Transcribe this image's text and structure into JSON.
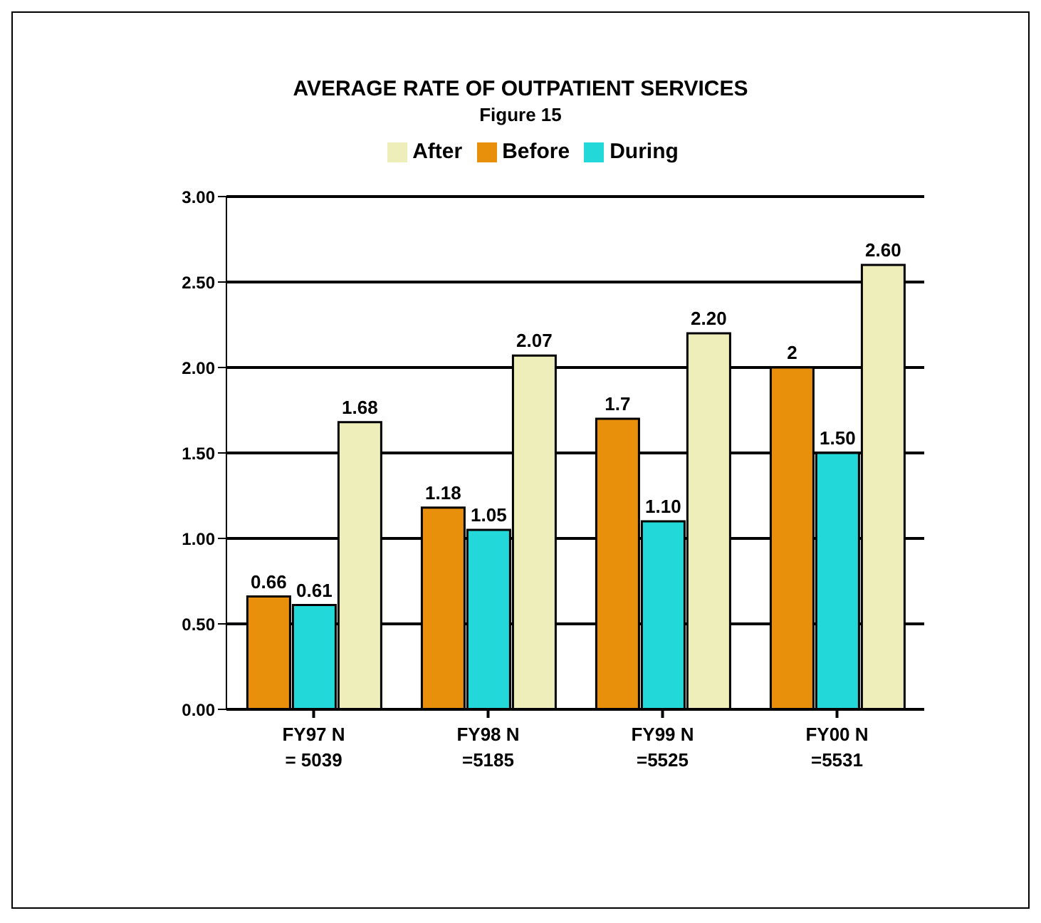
{
  "chart_data": {
    "type": "bar",
    "title": "AVERAGE RATE OF OUTPATIENT SERVICES",
    "subtitle": "Figure 15",
    "categories": [
      "FY97 N\n= 5039",
      "FY98 N\n=5185",
      "FY99 N\n=5525",
      "FY00 N\n=5531"
    ],
    "series": [
      {
        "name": "Before",
        "color": "#e8900c",
        "values": [
          0.66,
          1.18,
          1.7,
          2
        ],
        "value_labels": [
          "0.66",
          "1.18",
          "1.7",
          "2"
        ]
      },
      {
        "name": "During",
        "color": "#22d8d8",
        "values": [
          0.61,
          1.05,
          1.1,
          1.5
        ],
        "value_labels": [
          "0.61",
          "1.05",
          "1.10",
          "1.50"
        ]
      },
      {
        "name": "After",
        "color": "#eeeebb",
        "values": [
          1.68,
          2.07,
          2.2,
          2.6
        ],
        "value_labels": [
          "1.68",
          "2.07",
          "2.20",
          "2.60"
        ]
      }
    ],
    "ylim": [
      0,
      3
    ],
    "yticks": [
      {
        "value": 0,
        "label": "0.00"
      },
      {
        "value": 0.5,
        "label": "0.50"
      },
      {
        "value": 1,
        "label": "1.00"
      },
      {
        "value": 1.5,
        "label": "1.50"
      },
      {
        "value": 2,
        "label": "2.00"
      },
      {
        "value": 2.5,
        "label": "2.50"
      },
      {
        "value": 3,
        "label": "3.00"
      }
    ],
    "grid": "y",
    "legend": "top"
  }
}
